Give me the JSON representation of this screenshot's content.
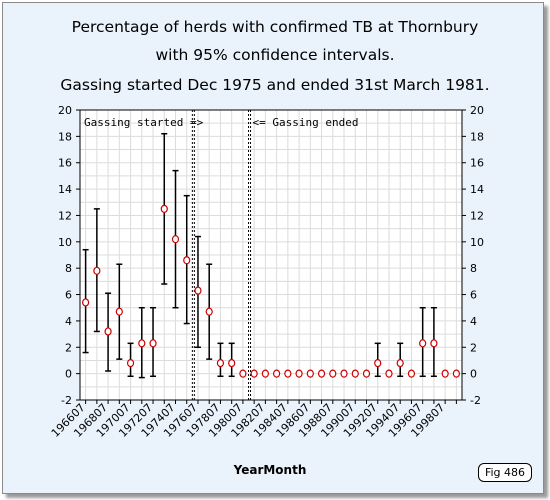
{
  "figure": {
    "title_lines": [
      "Percentage of herds with confirmed TB at Thornbury",
      "with 95% confidence intervals.",
      "Gassing started Dec 1975 and ended 31st March 1981."
    ],
    "badge": "Fig 486"
  },
  "chart_data": {
    "type": "scatter",
    "title": "Percentage of herds with confirmed TB at Thornbury with 95% confidence intervals. Gassing started Dec 1975 and ended 31st March 1981.",
    "xlabel": "YearMonth",
    "ylabel": "",
    "ylim": [
      -2,
      20
    ],
    "yticks": [
      -2,
      0,
      2,
      4,
      6,
      8,
      10,
      12,
      14,
      16,
      18,
      20
    ],
    "grid": true,
    "x_tick_labels": [
      "196607",
      "196807",
      "197007",
      "197207",
      "197407",
      "197607",
      "197807",
      "198007",
      "198207",
      "198407",
      "198607",
      "198807",
      "199007",
      "199207",
      "199407",
      "199607",
      "199807"
    ],
    "x": [
      "196607",
      "196707",
      "196807",
      "196907",
      "197007",
      "197107",
      "197207",
      "197307",
      "197407",
      "197507",
      "197607",
      "197707",
      "197807",
      "197907",
      "198007",
      "198107",
      "198207",
      "198307",
      "198407",
      "198507",
      "198607",
      "198707",
      "198807",
      "198907",
      "199007",
      "199107",
      "199207",
      "199307",
      "199407",
      "199507",
      "199607",
      "199707",
      "199807",
      "199907"
    ],
    "series": [
      {
        "values": [
          5.4,
          7.8,
          3.2,
          4.7,
          0.8,
          2.3,
          2.3,
          12.5,
          10.2,
          8.6,
          6.3,
          4.7,
          0.8,
          0.8,
          0,
          0,
          0,
          0,
          0,
          0,
          0,
          0,
          0,
          0,
          0,
          0,
          0.8,
          0,
          0.8,
          0,
          2.3,
          2.3,
          0,
          0
        ],
        "lower": [
          1.6,
          3.2,
          0.2,
          1.1,
          -0.2,
          -0.3,
          -0.2,
          6.8,
          5.0,
          3.8,
          2.0,
          1.1,
          -0.2,
          -0.2,
          0,
          0,
          0,
          0,
          0,
          0,
          0,
          0,
          0,
          0,
          0,
          0,
          -0.2,
          0,
          -0.2,
          0,
          -0.2,
          -0.2,
          0,
          0
        ],
        "upper": [
          9.4,
          12.5,
          6.1,
          8.3,
          2.3,
          5.0,
          5.0,
          18.2,
          15.4,
          13.5,
          10.4,
          8.3,
          2.3,
          2.3,
          0,
          0,
          0,
          0,
          0,
          0,
          0,
          0,
          0,
          0,
          0,
          0,
          2.3,
          0,
          2.3,
          0,
          5.0,
          5.0,
          0,
          0
        ],
        "marker_color": "#cc0000",
        "errorbar_color": "#000000"
      }
    ],
    "annotations": [
      {
        "label": "Gassing started =>",
        "line_after_x": "197507"
      },
      {
        "label": "<= Gassing ended",
        "line_after_x": "198007"
      }
    ],
    "colors": {
      "background": "#eaf3fc",
      "plot_area": "#ffffff",
      "grid": "#dcdcdc"
    }
  }
}
